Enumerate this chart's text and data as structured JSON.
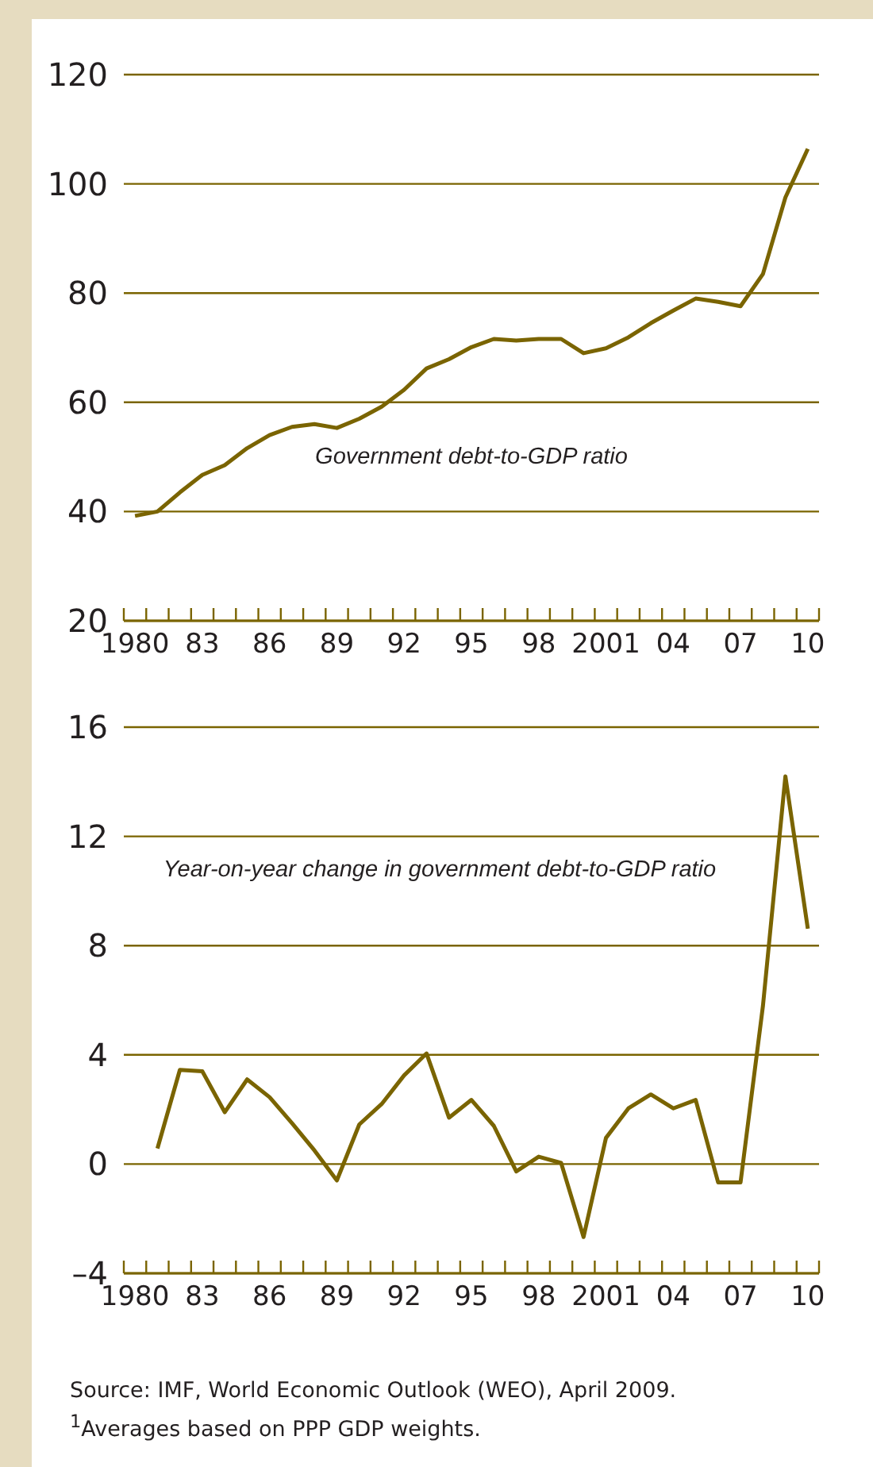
{
  "chart_data": [
    {
      "type": "line",
      "title": "Government debt-to-GDP ratio",
      "x": [
        1980,
        1981,
        1982,
        1983,
        1984,
        1985,
        1986,
        1987,
        1988,
        1989,
        1990,
        1991,
        1992,
        1993,
        1994,
        1995,
        1996,
        1997,
        1998,
        1999,
        2000,
        2001,
        2002,
        2003,
        2004,
        2005,
        2006,
        2007,
        2008,
        2009,
        2010
      ],
      "series": [
        {
          "color": "#7a6400",
          "values": [
            39.2,
            40,
            43.5,
            46.7,
            48.5,
            51.6,
            54,
            55.5,
            56,
            55.3,
            57,
            59.2,
            62.3,
            66.2,
            67.9,
            70.1,
            71.6,
            71.3,
            71.6,
            71.6,
            69,
            69.9,
            71.9,
            74.5,
            76.8,
            79,
            78.4,
            77.6,
            83.5,
            97.5,
            106.4
          ]
        }
      ],
      "xlim": [
        1979.5,
        2010.5
      ],
      "xticks": [
        {
          "value": 1979.5,
          "label": null
        },
        {
          "value": 1980.5,
          "label": null
        },
        {
          "value": 1981.5,
          "label": null
        },
        {
          "value": 1982.5,
          "label": null
        },
        {
          "value": 1983.5,
          "label": null
        },
        {
          "value": 1984.5,
          "label": null
        },
        {
          "value": 1985.5,
          "label": null
        },
        {
          "value": 1986.5,
          "label": null
        },
        {
          "value": 1987.5,
          "label": null
        },
        {
          "value": 1988.5,
          "label": null
        },
        {
          "value": 1989.5,
          "label": null
        },
        {
          "value": 1990.5,
          "label": null
        },
        {
          "value": 1991.5,
          "label": null
        },
        {
          "value": 1992.5,
          "label": null
        },
        {
          "value": 1993.5,
          "label": null
        },
        {
          "value": 1994.5,
          "label": null
        },
        {
          "value": 1995.5,
          "label": null
        },
        {
          "value": 1996.5,
          "label": null
        },
        {
          "value": 1997.5,
          "label": null
        },
        {
          "value": 1998.5,
          "label": null
        },
        {
          "value": 1999.5,
          "label": null
        },
        {
          "value": 2000.5,
          "label": null
        },
        {
          "value": 2001.5,
          "label": null
        },
        {
          "value": 2002.5,
          "label": null
        },
        {
          "value": 2003.5,
          "label": null
        },
        {
          "value": 2004.5,
          "label": null
        },
        {
          "value": 2005.5,
          "label": null
        },
        {
          "value": 2006.5,
          "label": null
        },
        {
          "value": 2007.5,
          "label": null
        },
        {
          "value": 2008.5,
          "label": null
        },
        {
          "value": 2009.5,
          "label": null
        },
        {
          "value": 2010.5,
          "label": null
        },
        {
          "value": 1980,
          "label": "1980"
        },
        {
          "value": 1983,
          "label": "83"
        },
        {
          "value": 1986,
          "label": "86"
        },
        {
          "value": 1989,
          "label": "89"
        },
        {
          "value": 1992,
          "label": "92"
        },
        {
          "value": 1995,
          "label": "95"
        },
        {
          "value": 1998,
          "label": "98"
        },
        {
          "value": 2001,
          "label": "2001"
        },
        {
          "value": 2004,
          "label": "04"
        },
        {
          "value": 2007,
          "label": "07"
        },
        {
          "value": 2010,
          "label": "10"
        }
      ],
      "ylim": [
        20,
        120
      ],
      "yticks": [
        20,
        40,
        60,
        80,
        100,
        120
      ],
      "grid": "y",
      "legend": false,
      "marker": "none",
      "line_style": "solid"
    },
    {
      "type": "line",
      "title": "Year-on-year change in government debt-to-GDP ratio",
      "series": [
        {
          "color": "#7a6400",
          "x": [
            1981,
            1982,
            1983,
            1984,
            1985,
            1986,
            1987,
            1988,
            1989,
            1990,
            1991,
            1992,
            1993,
            1994,
            1995,
            1996,
            1997,
            1998,
            1999,
            2000,
            2001,
            2002,
            2003,
            2004,
            2005,
            2006,
            2007,
            2008,
            2009,
            2010
          ],
          "values": [
            0.57,
            3.45,
            3.4,
            1.9,
            3.1,
            2.45,
            1.5,
            0.5,
            -0.6,
            1.45,
            2.2,
            3.25,
            4.05,
            1.7,
            2.35,
            1.4,
            -0.27,
            0.27,
            0.04,
            -2.67,
            0.96,
            2.04,
            2.55,
            2.04,
            2.35,
            -0.67,
            -0.67,
            5.8,
            14.2,
            8.62
          ]
        }
      ],
      "xlim": [
        1979.5,
        2010.5
      ],
      "xticks": [
        {
          "value": 1979.5,
          "label": null
        },
        {
          "value": 1980.5,
          "label": null
        },
        {
          "value": 1981.5,
          "label": null
        },
        {
          "value": 1982.5,
          "label": null
        },
        {
          "value": 1983.5,
          "label": null
        },
        {
          "value": 1984.5,
          "label": null
        },
        {
          "value": 1985.5,
          "label": null
        },
        {
          "value": 1986.5,
          "label": null
        },
        {
          "value": 1987.5,
          "label": null
        },
        {
          "value": 1988.5,
          "label": null
        },
        {
          "value": 1989.5,
          "label": null
        },
        {
          "value": 1990.5,
          "label": null
        },
        {
          "value": 1991.5,
          "label": null
        },
        {
          "value": 1992.5,
          "label": null
        },
        {
          "value": 1993.5,
          "label": null
        },
        {
          "value": 1994.5,
          "label": null
        },
        {
          "value": 1995.5,
          "label": null
        },
        {
          "value": 1996.5,
          "label": null
        },
        {
          "value": 1997.5,
          "label": null
        },
        {
          "value": 1998.5,
          "label": null
        },
        {
          "value": 1999.5,
          "label": null
        },
        {
          "value": 2000.5,
          "label": null
        },
        {
          "value": 2001.5,
          "label": null
        },
        {
          "value": 2002.5,
          "label": null
        },
        {
          "value": 2003.5,
          "label": null
        },
        {
          "value": 2004.5,
          "label": null
        },
        {
          "value": 2005.5,
          "label": null
        },
        {
          "value": 2006.5,
          "label": null
        },
        {
          "value": 2007.5,
          "label": null
        },
        {
          "value": 2008.5,
          "label": null
        },
        {
          "value": 2009.5,
          "label": null
        },
        {
          "value": 2010.5,
          "label": null
        },
        {
          "value": 1980,
          "label": "1980"
        },
        {
          "value": 1983,
          "label": "83"
        },
        {
          "value": 1986,
          "label": "86"
        },
        {
          "value": 1989,
          "label": "89"
        },
        {
          "value": 1992,
          "label": "92"
        },
        {
          "value": 1995,
          "label": "95"
        },
        {
          "value": 1998,
          "label": "98"
        },
        {
          "value": 2001,
          "label": "2001"
        },
        {
          "value": 2004,
          "label": "04"
        },
        {
          "value": 2007,
          "label": "07"
        },
        {
          "value": 2010,
          "label": "10"
        }
      ],
      "ylim": [
        -4,
        16
      ],
      "yticks": [
        {
          "value": -4,
          "label": "–4"
        },
        0,
        4,
        8,
        12,
        16
      ],
      "grid": "y",
      "legend": false,
      "marker": "none",
      "line_style": "solid",
      "annotations": [
        "Source:  IMF, World Economic Outlook (WEO), April 2009.",
        "$^{1}$Averages based on PPP GDP weights."
      ]
    }
  ]
}
